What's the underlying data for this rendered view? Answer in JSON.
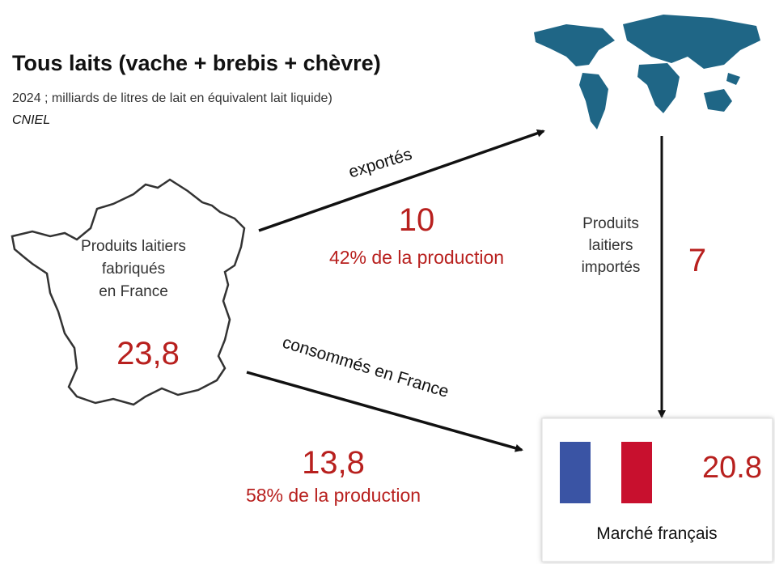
{
  "header": {
    "title": "Tous laits (vache + brebis + chèvre)",
    "subtitle": "2024 ; milliards de litres de lait en équivalent lait liquide)",
    "source": "CNIEL"
  },
  "nodes": [
    {
      "label": "Produits laitiers fabriqués en France",
      "label_lines": [
        "Produits laitiers",
        "fabriqués",
        "en France"
      ],
      "value": "23,8"
    },
    {
      "label": "Marché français",
      "value": "20.8"
    }
  ],
  "flows": [
    {
      "label": "exportés",
      "value": "10",
      "share": "42% de la production"
    },
    {
      "label": "consommés en France",
      "value": "13,8",
      "share": "58% de la production"
    },
    {
      "label": "Produits laitiers importés",
      "label_lines": [
        "Produits",
        "laitiers",
        "importés"
      ],
      "value": "7"
    }
  ]
}
